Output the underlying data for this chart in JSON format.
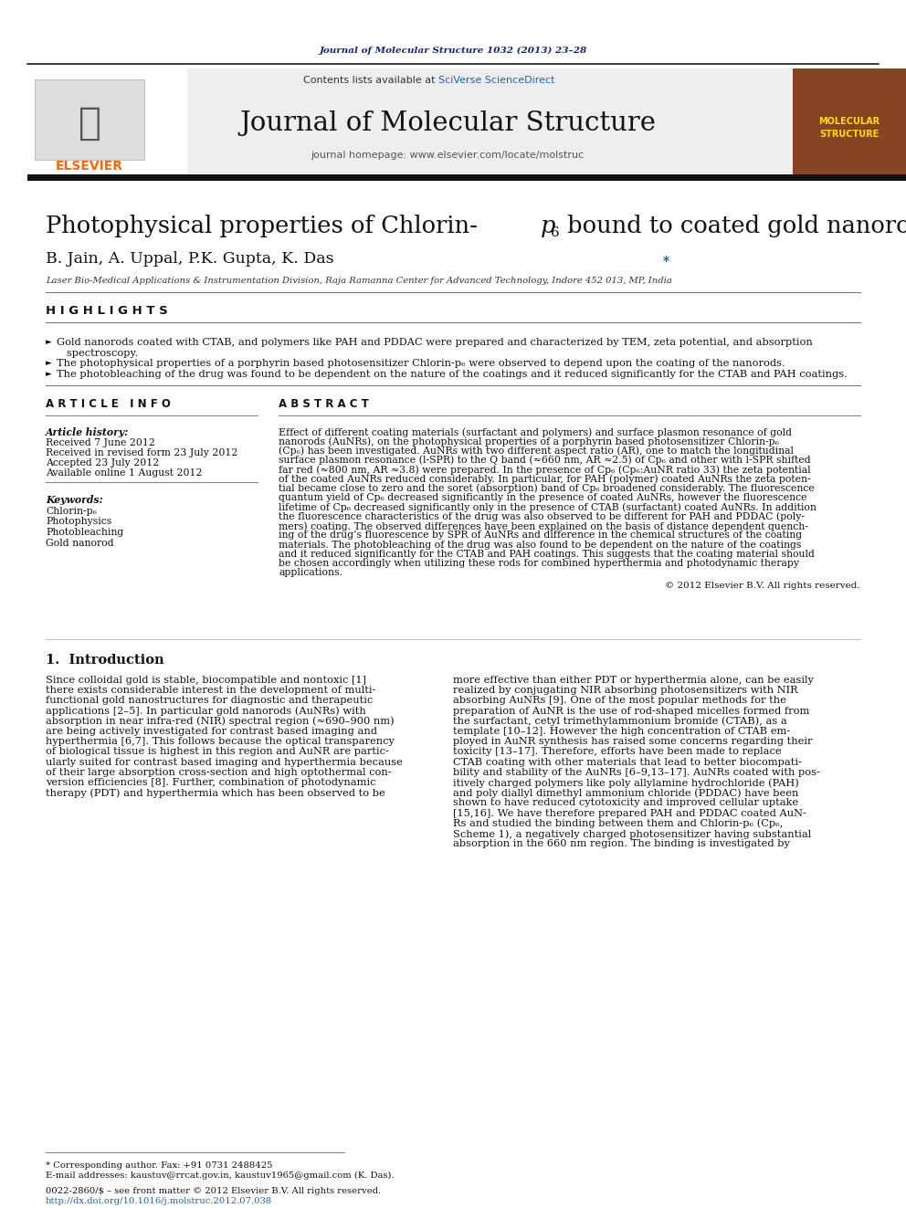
{
  "bg_color": "#ffffff",
  "header_journal_text": "Journal of Molecular Structure 1032 (2013) 23–28",
  "header_journal_color": "#1a237e",
  "elsevier_color": "#ff6600",
  "journal_title": "Journal of Molecular Structure",
  "journal_homepage": "journal homepage: www.elsevier.com/locate/molstruc",
  "sciverse_color": "#1565c0",
  "highlights_title": "H I G H L I G H T S",
  "keywords": [
    "Chlorin-p₆",
    "Photophysics",
    "Photobleaching",
    "Gold nanorod"
  ],
  "copyright_text": "© 2012 Elsevier B.V. All rights reserved.",
  "footnote_corresponding": "* Corresponding author. Fax: +91 0731 2488425",
  "footnote_email": "E-mail addresses: kaustuv@rrcat.gov.in, kaustuv1965@gmail.com (K. Das).",
  "footnote_issn": "0022-2860/$ – see front matter © 2012 Elsevier B.V. All rights reserved.",
  "footnote_doi": "http://dx.doi.org/10.1016/j.molstruc.2012.07.038",
  "affiliation": "Laser Bio-Medical Applications & Instrumentation Division, Raja Ramanna Center for Advanced Technology, Indore 452 013, MP, India",
  "abstract_lines": [
    "Effect of different coating materials (surfactant and polymers) and surface plasmon resonance of gold",
    "nanorods (AuNRs), on the photophysical properties of a porphyrin based photosensitizer Chlorin-p₆",
    "(Cp₆) has been investigated. AuNRs with two different aspect ratio (AR), one to match the longitudinal",
    "surface plasmon resonance (l-SPR) to the Q band (≈660 nm, AR ≈2.5) of Cp₆ and other with l-SPR shifted",
    "far red (≈800 nm, AR ≈3.8) were prepared. In the presence of Cp₆ (Cp₆:AuNR ratio 33) the zeta potential",
    "of the coated AuNRs reduced considerably. In particular, for PAH (polymer) coated AuNRs the zeta poten-",
    "tial became close to zero and the soret (absorption) band of Cp₆ broadened considerably. The fluorescence",
    "quantum yield of Cp₆ decreased significantly in the presence of coated AuNRs, however the fluorescence",
    "lifetime of Cp₆ decreased significantly only in the presence of CTAB (surfactant) coated AuNRs. In addition",
    "the fluorescence characteristics of the drug was also observed to be different for PAH and PDDAC (poly-",
    "mers) coating. The observed differences have been explained on the basis of distance dependent quench-",
    "ing of the drug’s fluorescence by SPR of AuNRs and difference in the chemical structures of the coating",
    "materials. The photobleaching of the drug was also found to be dependent on the nature of the coatings",
    "and it reduced significantly for the CTAB and PAH coatings. This suggests that the coating material should",
    "be chosen accordingly when utilizing these rods for combined hyperthermia and photodynamic therapy",
    "applications."
  ],
  "col1_intro_lines": [
    "Since colloidal gold is stable, biocompatible and nontoxic [1]",
    "there exists considerable interest in the development of multi-",
    "functional gold nanostructures for diagnostic and therapeutic",
    "applications [2–5]. In particular gold nanorods (AuNRs) with",
    "absorption in near infra-red (NIR) spectral region (≈690–900 nm)",
    "are being actively investigated for contrast based imaging and",
    "hyperthermia [6,7]. This follows because the optical transparency",
    "of biological tissue is highest in this region and AuNR are partic-",
    "ularly suited for contrast based imaging and hyperthermia because",
    "of their large absorption cross-section and high optothermal con-",
    "version efficiencies [8]. Further, combination of photodynamic",
    "therapy (PDT) and hyperthermia which has been observed to be"
  ],
  "col2_intro_lines": [
    "more effective than either PDT or hyperthermia alone, can be easily",
    "realized by conjugating NIR absorbing photosensitizers with NIR",
    "absorbing AuNRs [9]. One of the most popular methods for the",
    "preparation of AuNR is the use of rod-shaped micelles formed from",
    "the surfactant, cetyl trimethylammonium bromide (CTAB), as a",
    "template [10–12]. However the high concentration of CTAB em-",
    "ployed in AuNR synthesis has raised some concerns regarding their",
    "toxicity [13–17]. Therefore, efforts have been made to replace",
    "CTAB coating with other materials that lead to better biocompati-",
    "bility and stability of the AuNRs [6–9,13–17]. AuNRs coated with pos-",
    "itively charged polymers like poly allylamine hydrochloride (PAH)",
    "and poly diallyl dimethyl ammonium chloride (PDDAC) have been",
    "shown to have reduced cytotoxicity and improved cellular uptake",
    "[15,16]. We have therefore prepared PAH and PDDAC coated AuN-",
    "Rs and studied the binding between them and Chlorin-p₆ (Cp₆,",
    "Scheme 1), a negatively charged photosensitizer having substantial",
    "absorption in the 660 nm region. The binding is investigated by"
  ]
}
